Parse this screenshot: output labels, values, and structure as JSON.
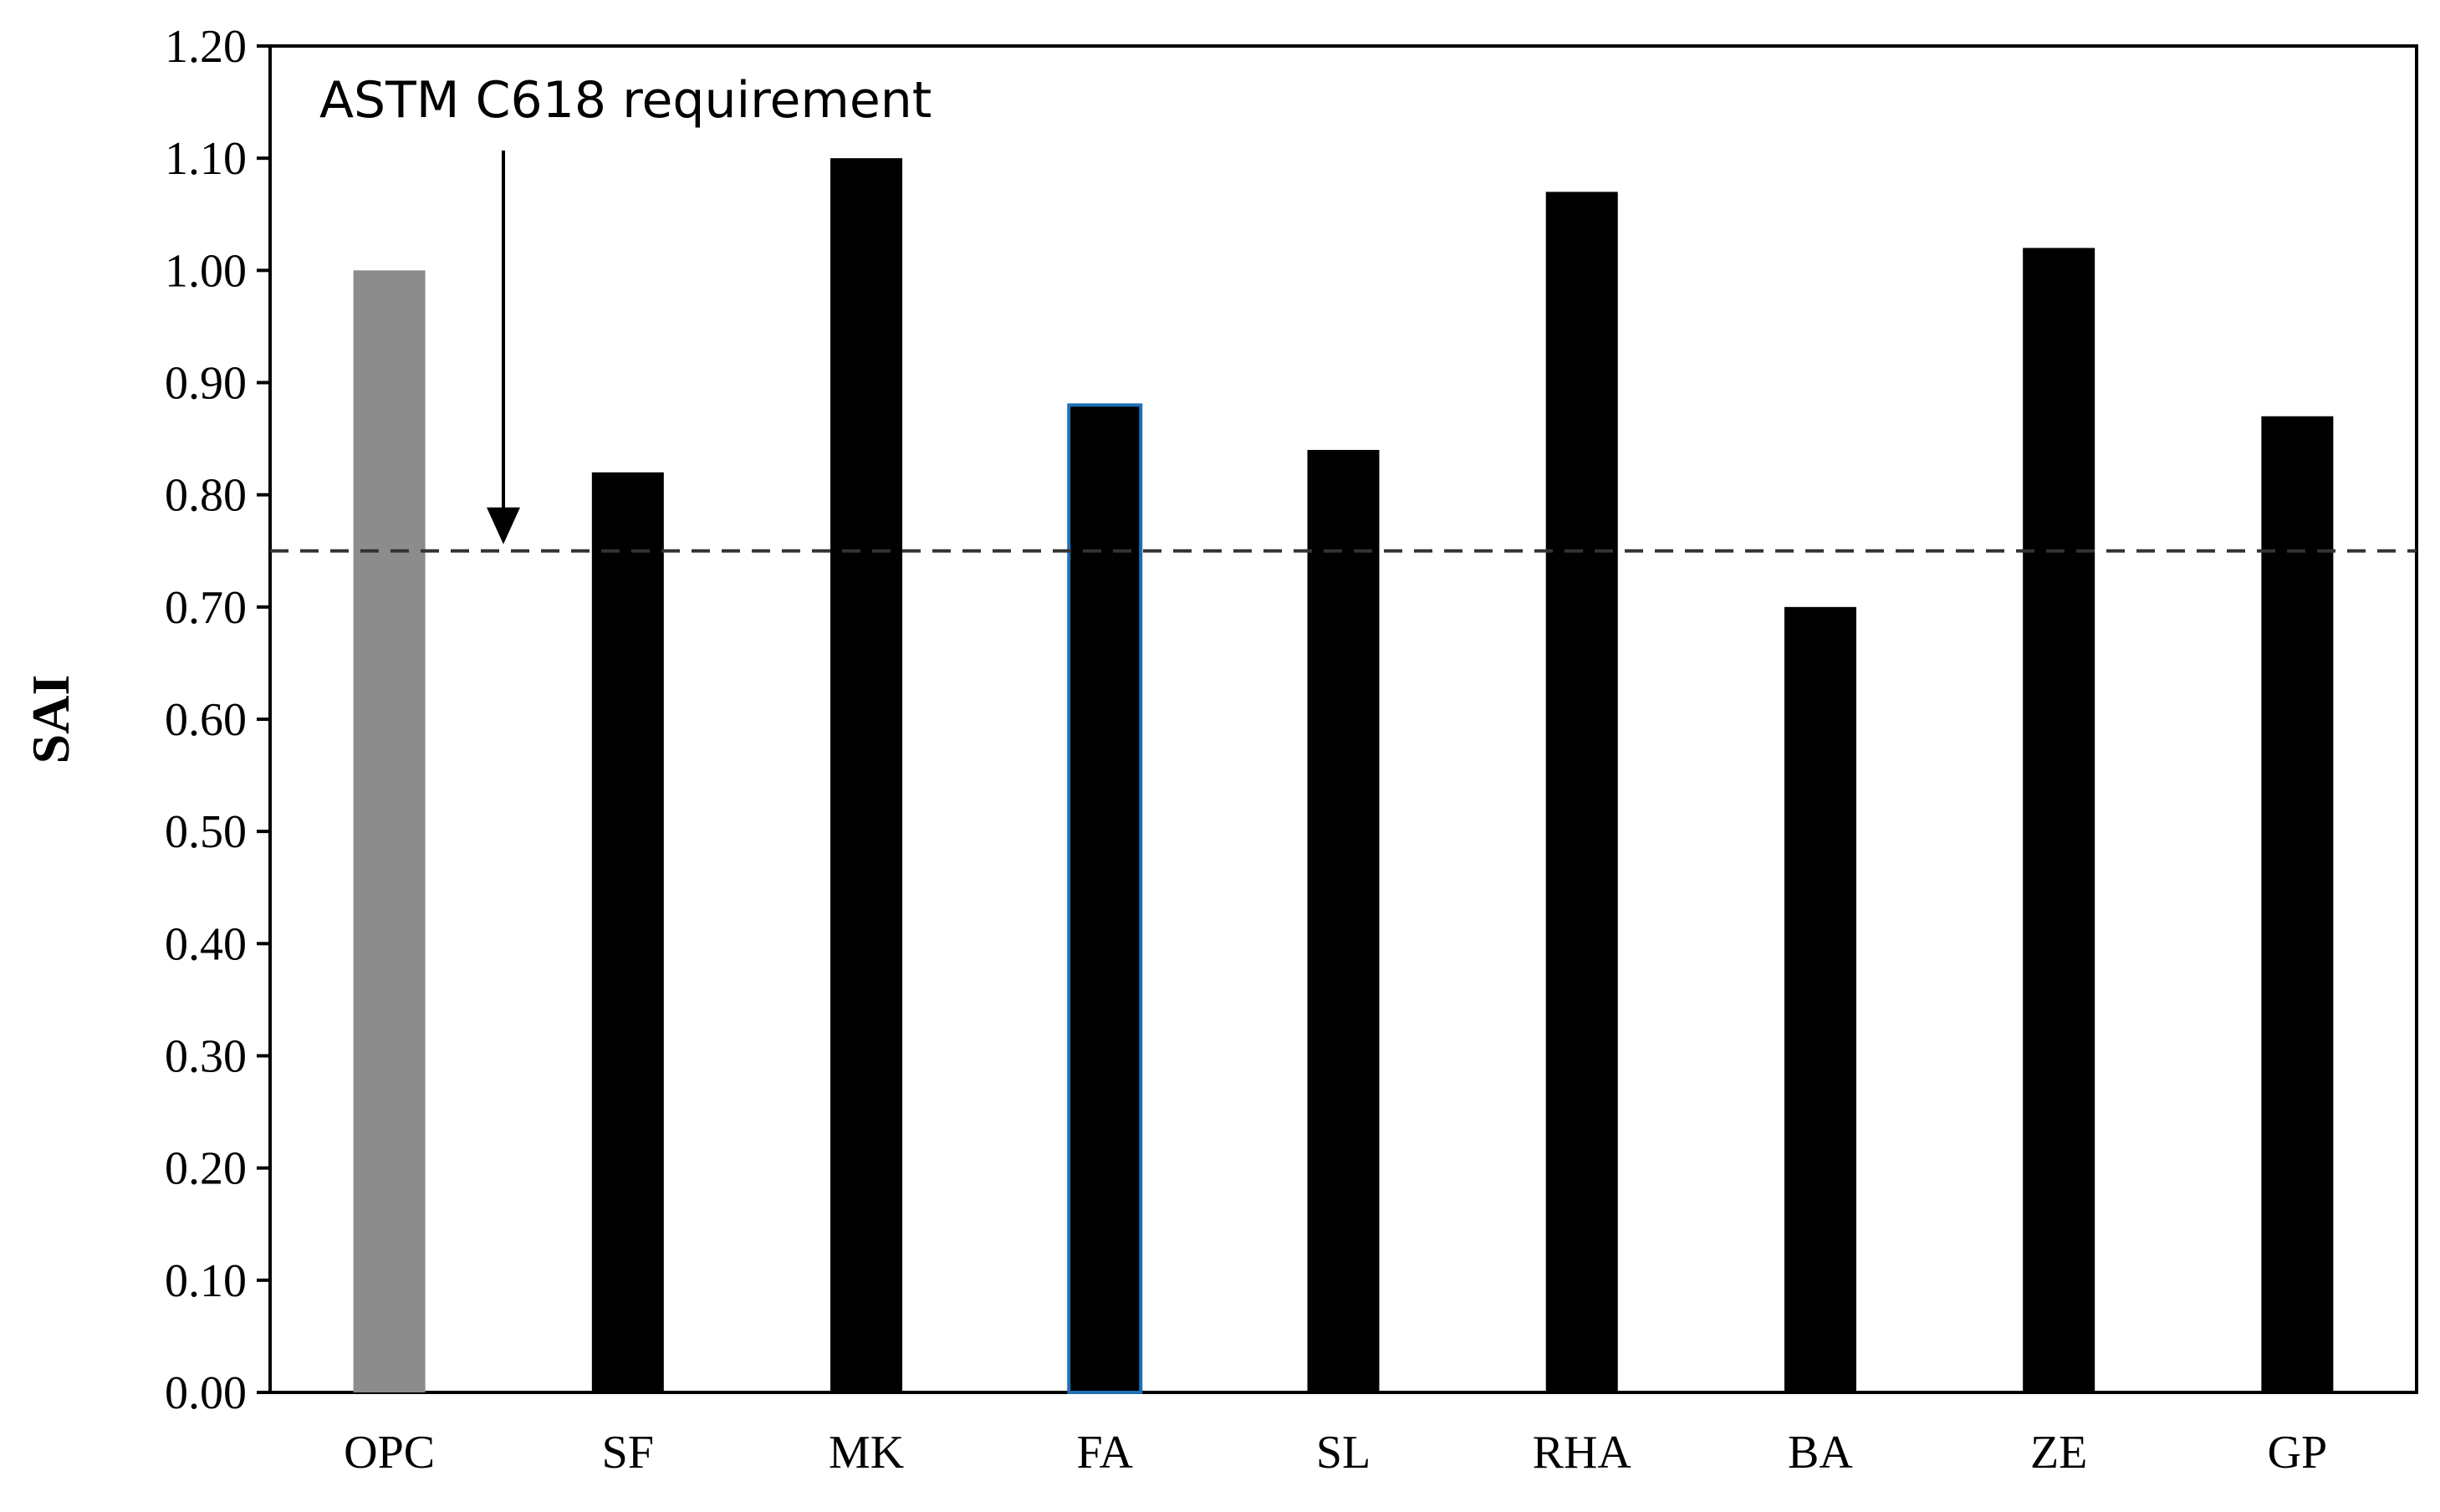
{
  "chart_data": {
    "type": "bar",
    "categories": [
      "OPC",
      "SF",
      "MK",
      "FA",
      "SL",
      "RHA",
      "BA",
      "ZE",
      "GP"
    ],
    "values": [
      1.0,
      0.82,
      1.1,
      0.88,
      0.84,
      1.07,
      0.7,
      1.02,
      0.87
    ],
    "bar_colors": [
      "#8c8c8c",
      "#000000",
      "#000000",
      "#000000",
      "#000000",
      "#000000",
      "#000000",
      "#000000",
      "#000000"
    ],
    "highlight_outline": {
      "category": "FA",
      "color": "#1f6fb5"
    },
    "ylabel": "SAI",
    "xlabel": "",
    "ylim": [
      0,
      1.2
    ],
    "yticks": [
      "0.00",
      "0.10",
      "0.20",
      "0.30",
      "0.40",
      "0.50",
      "0.60",
      "0.70",
      "0.80",
      "0.90",
      "1.00",
      "1.10",
      "1.20"
    ],
    "reference_line": {
      "value": 0.75,
      "style": "dashed"
    },
    "annotation": {
      "text": "ASTM C618 requirement",
      "points_to": 0.75
    },
    "grid": false,
    "legend": "none"
  }
}
